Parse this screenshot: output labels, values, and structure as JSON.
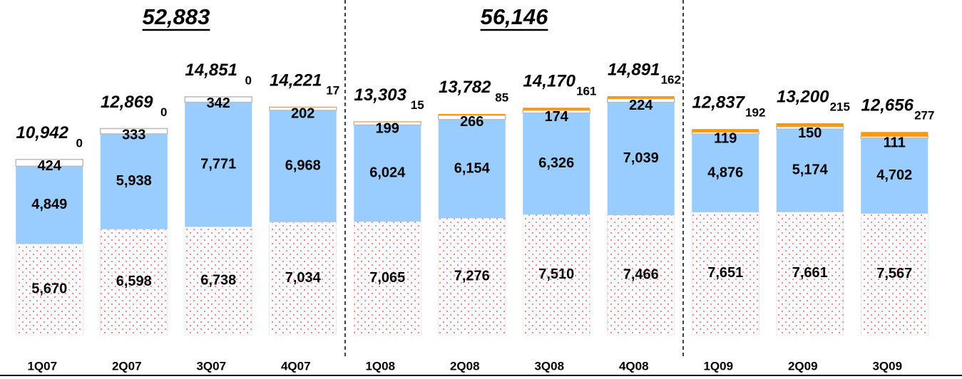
{
  "chart_data": {
    "type": "stacked_bar",
    "categories": [
      "1Q07",
      "2Q07",
      "3Q07",
      "4Q07",
      "1Q08",
      "2Q08",
      "3Q08",
      "4Q08",
      "1Q09",
      "2Q09",
      "3Q09"
    ],
    "series": [
      {
        "color": "#ff3333",
        "values": [
          5670,
          6598,
          6738,
          7034,
          7065,
          7276,
          7510,
          7466,
          7651,
          7661,
          7567
        ],
        "value_labels": [
          "5,670",
          "6,598",
          "6,738",
          "7,034",
          "7,065",
          "7,276",
          "7,510",
          "7,466",
          "7,651",
          "7,661",
          "7,567"
        ]
      },
      {
        "color": "#99ccff",
        "values": [
          4849,
          5938,
          7771,
          6968,
          6024,
          6154,
          6326,
          7039,
          4876,
          5174,
          4702
        ],
        "value_labels": [
          "4,849",
          "5,938",
          "7,771",
          "6,968",
          "6,024",
          "6,154",
          "6,326",
          "7,039",
          "4,876",
          "5,174",
          "4,702"
        ]
      },
      {
        "color": "#ffffff",
        "values": [
          424,
          333,
          342,
          202,
          199,
          266,
          174,
          224,
          119,
          150,
          111
        ]
      },
      {
        "color": "#ff9900",
        "values": [
          0,
          0,
          0,
          17,
          15,
          85,
          161,
          162,
          192,
          215,
          277
        ]
      }
    ],
    "totals": [
      10942,
      12869,
      14851,
      14221,
      13303,
      13782,
      14170,
      14891,
      12837,
      13200,
      12656
    ],
    "total_labels": [
      "10,942",
      "12,869",
      "14,851",
      "14,221",
      "13,303",
      "13,782",
      "14,170",
      "14,891",
      "12,837",
      "13,200",
      "12,656"
    ],
    "group_totals": [
      {
        "value": 52883,
        "label": "52,883"
      },
      {
        "value": 56146,
        "label": "56,146"
      }
    ],
    "ylim": [
      0,
      20000
    ]
  }
}
